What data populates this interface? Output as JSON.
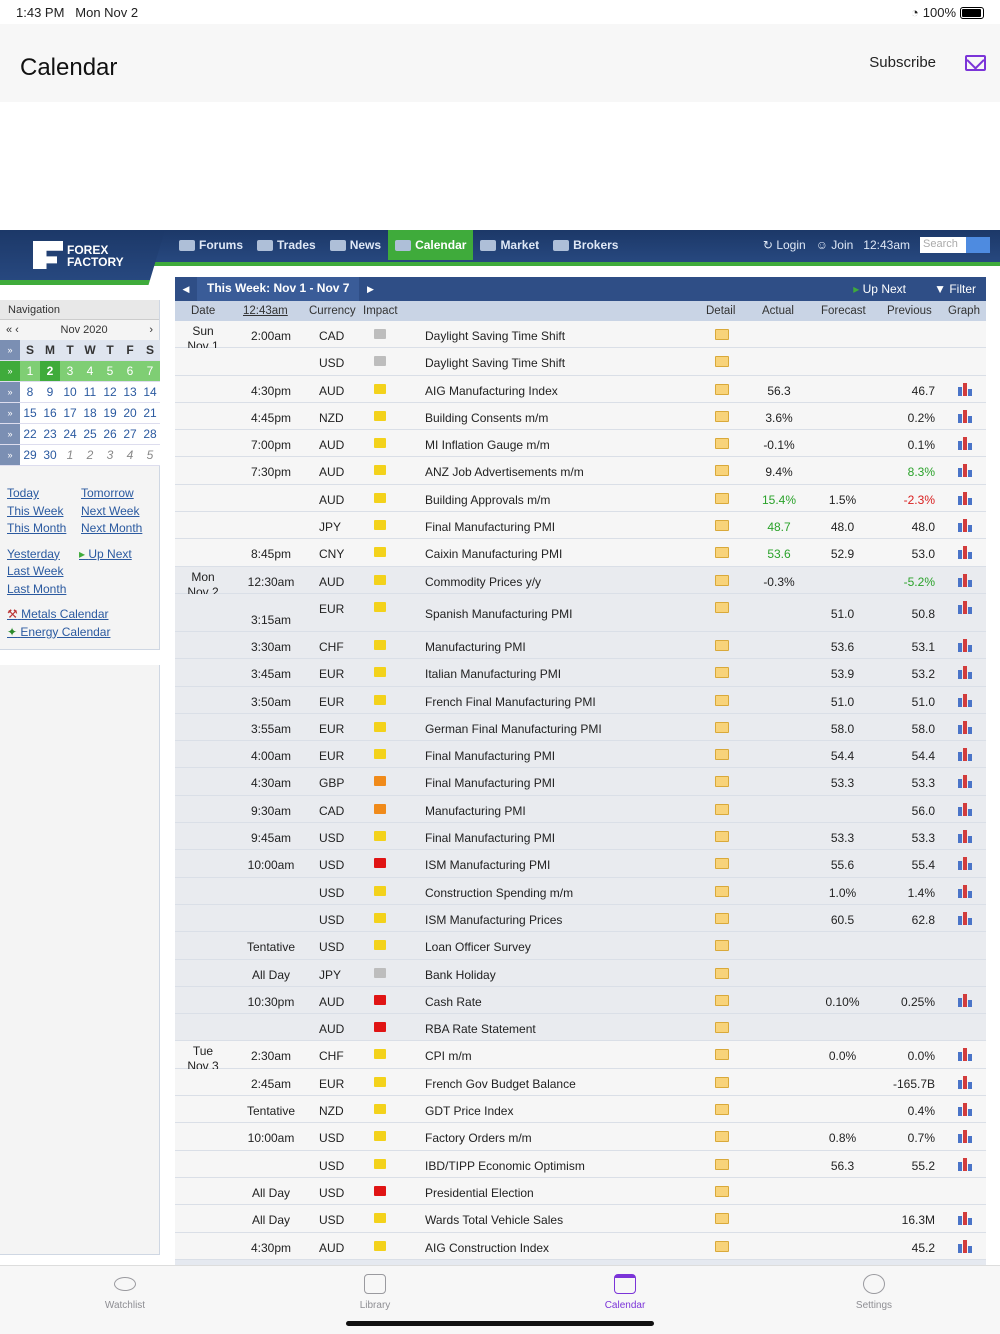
{
  "status_bar": {
    "time": "1:43 PM",
    "date": "Mon Nov 2",
    "battery": "100%"
  },
  "header": {
    "title": "Calendar",
    "subscribe": "Subscribe"
  },
  "site": {
    "logo": [
      "FOREX",
      "FACTORY"
    ],
    "nav": [
      "Forums",
      "Trades",
      "News",
      "Calendar",
      "Market",
      "Brokers"
    ],
    "login": "Login",
    "join": "Join",
    "time": "12:43am",
    "search_placeholder": "Search"
  },
  "sidebar": {
    "title": "Navigation",
    "month": "Nov 2020",
    "days": [
      "S",
      "M",
      "T",
      "W",
      "T",
      "F",
      "S"
    ],
    "weeks": [
      [
        "1",
        "2",
        "3",
        "4",
        "5",
        "6",
        "7"
      ],
      [
        "8",
        "9",
        "10",
        "11",
        "12",
        "13",
        "14"
      ],
      [
        "15",
        "16",
        "17",
        "18",
        "19",
        "20",
        "21"
      ],
      [
        "22",
        "23",
        "24",
        "25",
        "26",
        "27",
        "28"
      ],
      [
        "29",
        "30",
        "1",
        "2",
        "3",
        "4",
        "5"
      ]
    ],
    "links_left": [
      "Today",
      "This Week",
      "This Month",
      "Yesterday",
      "Last Week",
      "Last Month"
    ],
    "links_right": [
      "Tomorrow",
      "Next Week",
      "Next Month",
      "Up Next"
    ],
    "metals": "Metals Calendar",
    "energy": "Energy Calendar"
  },
  "calendar": {
    "week_title": "This Week: Nov 1 - Nov 7",
    "up_next": "Up Next",
    "filter": "Filter",
    "columns": {
      "date": "Date",
      "time": "12:43am",
      "currency": "Currency",
      "impact": "Impact",
      "detail": "Detail",
      "actual": "Actual",
      "forecast": "Forecast",
      "previous": "Previous",
      "graph": "Graph"
    },
    "rows": [
      {
        "d1": "Sun",
        "d2": "Nov 1",
        "time": "2:00am",
        "cur": "CAD",
        "imp": "gray",
        "ev": "Daylight Saving Time Shift",
        "act": "",
        "fc": "",
        "prev": "",
        "g": false
      },
      {
        "time": "",
        "cur": "USD",
        "imp": "gray",
        "ev": "Daylight Saving Time Shift",
        "act": "",
        "fc": "",
        "prev": "",
        "g": false
      },
      {
        "time": "4:30pm",
        "cur": "AUD",
        "imp": "yellow",
        "ev": "AIG Manufacturing Index",
        "act": "56.3",
        "fc": "",
        "prev": "46.7",
        "g": true
      },
      {
        "time": "4:45pm",
        "cur": "NZD",
        "imp": "yellow",
        "ev": "Building Consents m/m",
        "act": "3.6%",
        "fc": "",
        "prev": "0.2%",
        "g": true
      },
      {
        "time": "7:00pm",
        "cur": "AUD",
        "imp": "yellow",
        "ev": "MI Inflation Gauge m/m",
        "act": "-0.1%",
        "fc": "",
        "prev": "0.1%",
        "g": true
      },
      {
        "time": "7:30pm",
        "cur": "AUD",
        "imp": "yellow",
        "ev": "ANZ Job Advertisements m/m",
        "act": "9.4%",
        "fc": "",
        "prev": "8.3%",
        "pc": "green",
        "g": true
      },
      {
        "time": "",
        "cur": "AUD",
        "imp": "yellow",
        "ev": "Building Approvals m/m",
        "act": "15.4%",
        "ac": "green",
        "fc": "1.5%",
        "prev": "-2.3%",
        "pc": "red",
        "g": true
      },
      {
        "time": "",
        "cur": "JPY",
        "imp": "yellow",
        "ev": "Final Manufacturing PMI",
        "act": "48.7",
        "ac": "green",
        "fc": "48.0",
        "prev": "48.0",
        "g": true
      },
      {
        "time": "8:45pm",
        "cur": "CNY",
        "imp": "yellow",
        "ev": "Caixin Manufacturing PMI",
        "act": "53.6",
        "ac": "green",
        "fc": "52.9",
        "prev": "53.0",
        "g": true
      },
      {
        "d1": "Mon",
        "d2": "Nov 2",
        "time": "12:30am",
        "cur": "AUD",
        "imp": "yellow",
        "ev": "Commodity Prices y/y",
        "act": "-0.3%",
        "fc": "",
        "prev": "-5.2%",
        "pc": "green",
        "g": true,
        "shade": true
      },
      {
        "time": "3:15am",
        "cur": "EUR",
        "imp": "yellow",
        "ev": "Spanish Manufacturing PMI",
        "act": "",
        "fc": "51.0",
        "prev": "50.8",
        "g": true,
        "shade": true,
        "tall": true
      },
      {
        "time": "3:30am",
        "cur": "CHF",
        "imp": "yellow",
        "ev": "Manufacturing PMI",
        "act": "",
        "fc": "53.6",
        "prev": "53.1",
        "g": true,
        "shade": true
      },
      {
        "time": "3:45am",
        "cur": "EUR",
        "imp": "yellow",
        "ev": "Italian Manufacturing PMI",
        "act": "",
        "fc": "53.9",
        "prev": "53.2",
        "g": true,
        "shade": true
      },
      {
        "time": "3:50am",
        "cur": "EUR",
        "imp": "yellow",
        "ev": "French Final Manufacturing PMI",
        "act": "",
        "fc": "51.0",
        "prev": "51.0",
        "g": true,
        "shade": true
      },
      {
        "time": "3:55am",
        "cur": "EUR",
        "imp": "yellow",
        "ev": "German Final Manufacturing PMI",
        "act": "",
        "fc": "58.0",
        "prev": "58.0",
        "g": true,
        "shade": true
      },
      {
        "time": "4:00am",
        "cur": "EUR",
        "imp": "yellow",
        "ev": "Final Manufacturing PMI",
        "act": "",
        "fc": "54.4",
        "prev": "54.4",
        "g": true,
        "shade": true
      },
      {
        "time": "4:30am",
        "cur": "GBP",
        "imp": "orange",
        "ev": "Final Manufacturing PMI",
        "act": "",
        "fc": "53.3",
        "prev": "53.3",
        "g": true,
        "shade": true
      },
      {
        "time": "9:30am",
        "cur": "CAD",
        "imp": "orange",
        "ev": "Manufacturing PMI",
        "act": "",
        "fc": "",
        "prev": "56.0",
        "g": true,
        "shade": true
      },
      {
        "time": "9:45am",
        "cur": "USD",
        "imp": "yellow",
        "ev": "Final Manufacturing PMI",
        "act": "",
        "fc": "53.3",
        "prev": "53.3",
        "g": true,
        "shade": true
      },
      {
        "time": "10:00am",
        "cur": "USD",
        "imp": "red",
        "ev": "ISM Manufacturing PMI",
        "act": "",
        "fc": "55.6",
        "prev": "55.4",
        "g": true,
        "shade": true
      },
      {
        "time": "",
        "cur": "USD",
        "imp": "yellow",
        "ev": "Construction Spending m/m",
        "act": "",
        "fc": "1.0%",
        "prev": "1.4%",
        "g": true,
        "shade": true
      },
      {
        "time": "",
        "cur": "USD",
        "imp": "yellow",
        "ev": "ISM Manufacturing Prices",
        "act": "",
        "fc": "60.5",
        "prev": "62.8",
        "g": true,
        "shade": true
      },
      {
        "time": "Tentative",
        "cur": "USD",
        "imp": "yellow",
        "ev": "Loan Officer Survey",
        "act": "",
        "fc": "",
        "prev": "",
        "g": false,
        "shade": true
      },
      {
        "time": "All Day",
        "cur": "JPY",
        "imp": "gray",
        "ev": "Bank Holiday",
        "act": "",
        "fc": "",
        "prev": "",
        "g": false,
        "shade": true
      },
      {
        "time": "10:30pm",
        "cur": "AUD",
        "imp": "red",
        "ev": "Cash Rate",
        "act": "",
        "fc": "0.10%",
        "prev": "0.25%",
        "g": true,
        "shade": true
      },
      {
        "time": "",
        "cur": "AUD",
        "imp": "red",
        "ev": "RBA Rate Statement",
        "act": "",
        "fc": "",
        "prev": "",
        "g": false,
        "shade": true
      },
      {
        "d1": "Tue",
        "d2": "Nov 3",
        "time": "2:30am",
        "cur": "CHF",
        "imp": "yellow",
        "ev": "CPI m/m",
        "act": "",
        "fc": "0.0%",
        "prev": "0.0%",
        "g": true
      },
      {
        "time": "2:45am",
        "cur": "EUR",
        "imp": "yellow",
        "ev": "French Gov Budget Balance",
        "act": "",
        "fc": "",
        "prev": "-165.7B",
        "g": true
      },
      {
        "time": "Tentative",
        "cur": "NZD",
        "imp": "yellow",
        "ev": "GDT Price Index",
        "act": "",
        "fc": "",
        "prev": "0.4%",
        "g": true
      },
      {
        "time": "10:00am",
        "cur": "USD",
        "imp": "yellow",
        "ev": "Factory Orders m/m",
        "act": "",
        "fc": "0.8%",
        "prev": "0.7%",
        "g": true
      },
      {
        "time": "",
        "cur": "USD",
        "imp": "yellow",
        "ev": "IBD/TIPP Economic Optimism",
        "act": "",
        "fc": "56.3",
        "prev": "55.2",
        "g": true
      },
      {
        "time": "All Day",
        "cur": "USD",
        "imp": "red",
        "ev": "Presidential Election",
        "act": "",
        "fc": "",
        "prev": "",
        "g": false
      },
      {
        "time": "All Day",
        "cur": "USD",
        "imp": "yellow",
        "ev": "Wards Total Vehicle Sales",
        "act": "",
        "fc": "",
        "prev": "16.3M",
        "g": true
      },
      {
        "time": "4:30pm",
        "cur": "AUD",
        "imp": "yellow",
        "ev": "AIG Construction Index",
        "act": "",
        "fc": "",
        "prev": "45.2",
        "g": true
      }
    ]
  },
  "tabbar": {
    "tabs": [
      "Watchlist",
      "Library",
      "Calendar",
      "Settings"
    ],
    "active": 2
  }
}
